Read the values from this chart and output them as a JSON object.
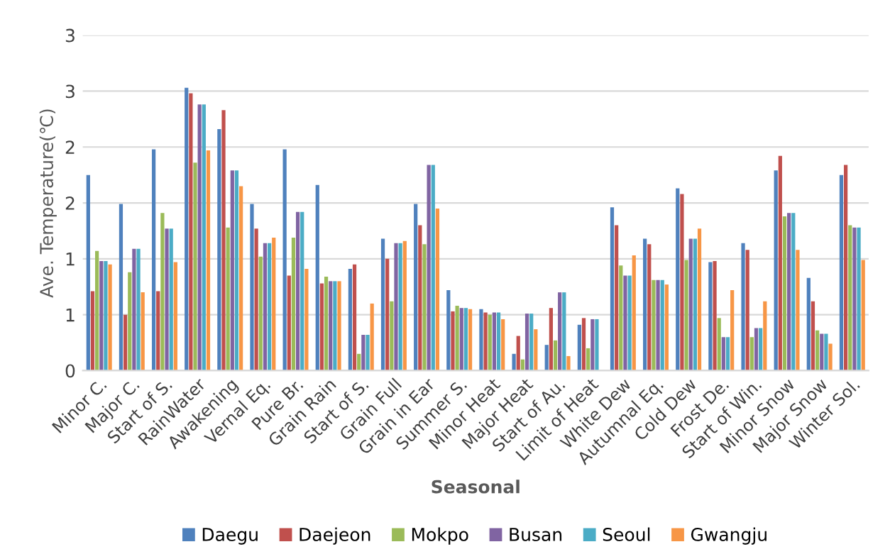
{
  "chart_data": {
    "type": "bar",
    "xlabel": "Seasonal",
    "ylabel": "Ave. Temperature(℃)",
    "categories": [
      "Minor C.",
      "Major C.",
      "Start of S.",
      "RainWater",
      "Awakening",
      "Vernal Eq.",
      "Pure Br.",
      "Grain Rain",
      "Start of S.",
      "Grain Full",
      "Grain in Ear",
      "Summer S.",
      "Minor Heat",
      "Major Heat",
      "Start of Au.",
      "Limit of Heat",
      "White Dew",
      "Autumnal Eq.",
      "Cold Dew",
      "Frost De.",
      "Start of Win.",
      "Minor Snow",
      "Major Snow",
      "Winter Sol."
    ],
    "series": [
      {
        "name": "Daegu",
        "color": "#4f81bd",
        "values": [
          1.75,
          1.49,
          1.98,
          2.53,
          2.16,
          1.49,
          1.98,
          1.66,
          0.91,
          1.18,
          1.49,
          0.72,
          0.55,
          0.15,
          0.23,
          0.41,
          1.46,
          1.18,
          1.63,
          0.97,
          1.14,
          1.79,
          0.83,
          1.75
        ]
      },
      {
        "name": "Daejeon",
        "color": "#c0504d",
        "values": [
          0.71,
          0.5,
          0.71,
          2.48,
          2.33,
          1.27,
          0.85,
          0.78,
          0.95,
          1.0,
          1.3,
          0.53,
          0.52,
          0.31,
          0.56,
          0.47,
          1.3,
          1.13,
          1.58,
          0.98,
          1.08,
          1.92,
          0.62,
          1.84
        ]
      },
      {
        "name": "Mokpo",
        "color": "#9bbb59",
        "values": [
          1.07,
          0.88,
          1.41,
          1.86,
          1.28,
          1.02,
          1.19,
          0.84,
          0.15,
          0.62,
          1.13,
          0.58,
          0.5,
          0.1,
          0.27,
          0.2,
          0.94,
          0.81,
          0.99,
          0.47,
          0.3,
          1.38,
          0.36,
          1.3
        ]
      },
      {
        "name": "Busan",
        "color": "#8064a2",
        "values": [
          0.98,
          1.09,
          1.27,
          2.38,
          1.79,
          1.14,
          1.42,
          0.8,
          0.32,
          1.14,
          1.84,
          0.56,
          0.52,
          0.51,
          0.7,
          0.46,
          0.85,
          0.81,
          1.18,
          0.3,
          0.38,
          1.41,
          0.33,
          1.28
        ]
      },
      {
        "name": "Seoul",
        "color": "#4bacc6",
        "values": [
          0.98,
          1.09,
          1.27,
          2.38,
          1.79,
          1.14,
          1.42,
          0.8,
          0.32,
          1.14,
          1.84,
          0.56,
          0.52,
          0.51,
          0.7,
          0.46,
          0.85,
          0.81,
          1.18,
          0.3,
          0.38,
          1.41,
          0.33,
          1.28
        ]
      },
      {
        "name": "Gwangju",
        "color": "#f79646",
        "values": [
          0.95,
          0.7,
          0.97,
          1.97,
          1.65,
          1.19,
          0.91,
          0.8,
          0.6,
          1.16,
          1.45,
          0.55,
          0.46,
          0.37,
          0.13,
          null,
          1.03,
          0.77,
          1.27,
          0.72,
          0.62,
          1.08,
          0.24,
          0.99
        ]
      }
    ],
    "ylim": [
      0,
      3
    ],
    "yticks": [
      0,
      {
        "value": 0.5,
        "label": "1"
      },
      1,
      {
        "value": 1.5,
        "label": "2"
      },
      2,
      {
        "value": 2.5,
        "label": "3"
      },
      3
    ],
    "grid": "y",
    "legend": "bottom"
  }
}
